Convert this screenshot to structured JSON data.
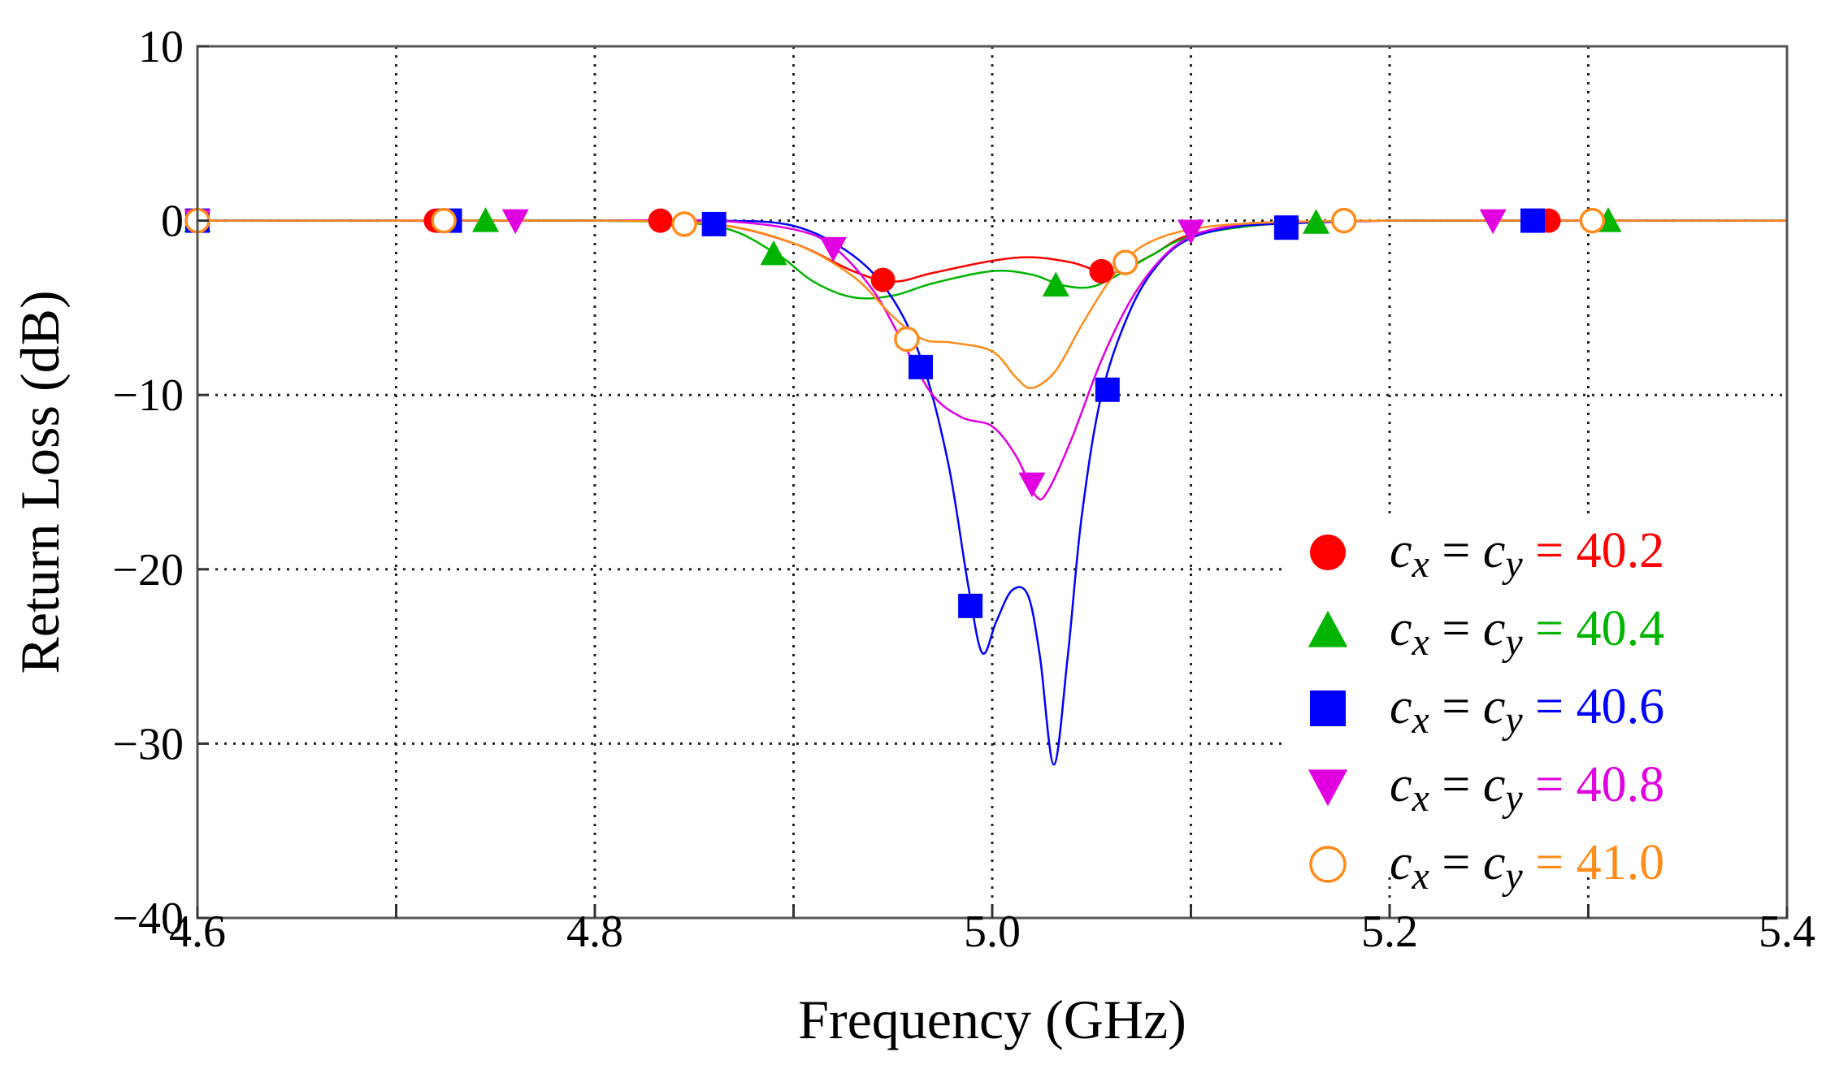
{
  "chart_data": {
    "type": "line",
    "title": "",
    "xlabel": "Frequency (GHz)",
    "ylabel": "Return Loss (dB)",
    "xlim": [
      4.6,
      5.4
    ],
    "ylim": [
      -40,
      10
    ],
    "xticks": [
      4.6,
      4.7,
      4.8,
      4.9,
      5.0,
      5.1,
      5.2,
      5.3,
      5.4
    ],
    "xtick_labels": [
      "4.6",
      "",
      "4.8",
      "",
      "5.0",
      "",
      "5.2",
      "",
      "5.4"
    ],
    "yticks": [
      10,
      0,
      -10,
      -20,
      -30,
      -40
    ],
    "ytick_labels": [
      "10",
      "0",
      "−10",
      "−20",
      "−30",
      "−40"
    ],
    "grid": true,
    "legend_position": "bottom-right",
    "legend_prefix": {
      "cx": "c",
      "x_sub": "x",
      "eq": "=",
      "cy": "c",
      "y_sub": "y"
    },
    "series": [
      {
        "name": "40.2",
        "label_value": "40.2",
        "color": "#ff0000",
        "marker": "circle-filled",
        "curve": [
          [
            4.6,
            0
          ],
          [
            4.7,
            0
          ],
          [
            4.8,
            0
          ],
          [
            4.86,
            -0.2
          ],
          [
            4.9,
            -1.3
          ],
          [
            4.93,
            -2.9
          ],
          [
            4.95,
            -3.5
          ],
          [
            4.97,
            -3.0
          ],
          [
            5.0,
            -2.3
          ],
          [
            5.02,
            -2.1
          ],
          [
            5.04,
            -2.4
          ],
          [
            5.06,
            -3.0
          ],
          [
            5.08,
            -2.0
          ],
          [
            5.1,
            -0.8
          ],
          [
            5.14,
            -0.2
          ],
          [
            5.2,
            0
          ],
          [
            5.3,
            0
          ],
          [
            5.4,
            0
          ]
        ],
        "markers": [
          [
            4.6,
            0
          ],
          [
            4.72,
            0
          ],
          [
            4.833,
            0
          ],
          [
            4.945,
            -3.4
          ],
          [
            5.055,
            -2.9
          ],
          [
            5.28,
            0
          ]
        ]
      },
      {
        "name": "40.4",
        "label_value": "40.4",
        "color": "#00b400",
        "marker": "triangle-up",
        "curve": [
          [
            4.6,
            0
          ],
          [
            4.7,
            0
          ],
          [
            4.8,
            0
          ],
          [
            4.86,
            -0.3
          ],
          [
            4.89,
            -1.8
          ],
          [
            4.91,
            -3.5
          ],
          [
            4.93,
            -4.4
          ],
          [
            4.95,
            -4.3
          ],
          [
            4.97,
            -3.6
          ],
          [
            5.0,
            -2.9
          ],
          [
            5.02,
            -3.1
          ],
          [
            5.035,
            -3.7
          ],
          [
            5.05,
            -3.8
          ],
          [
            5.065,
            -3.0
          ],
          [
            5.08,
            -2.0
          ],
          [
            5.1,
            -0.9
          ],
          [
            5.14,
            -0.2
          ],
          [
            5.2,
            0
          ],
          [
            5.3,
            0
          ],
          [
            5.4,
            0
          ]
        ],
        "markers": [
          [
            4.6,
            0
          ],
          [
            4.745,
            0
          ],
          [
            4.89,
            -1.9
          ],
          [
            5.032,
            -3.7
          ],
          [
            5.163,
            -0.1
          ],
          [
            5.31,
            0
          ]
        ]
      },
      {
        "name": "40.6",
        "label_value": "40.6",
        "color": "#0000ff",
        "marker": "square",
        "curve": [
          [
            4.6,
            0
          ],
          [
            4.7,
            0
          ],
          [
            4.8,
            0
          ],
          [
            4.86,
            0
          ],
          [
            4.9,
            -0.3
          ],
          [
            4.93,
            -2.0
          ],
          [
            4.95,
            -4.5
          ],
          [
            4.965,
            -8.2
          ],
          [
            4.978,
            -14.0
          ],
          [
            4.988,
            -21.0
          ],
          [
            4.995,
            -24.8
          ],
          [
            5.002,
            -23.0
          ],
          [
            5.01,
            -21.2
          ],
          [
            5.018,
            -21.5
          ],
          [
            5.024,
            -25.0
          ],
          [
            5.031,
            -31.2
          ],
          [
            5.038,
            -25.0
          ],
          [
            5.045,
            -17.0
          ],
          [
            5.055,
            -10.0
          ],
          [
            5.07,
            -5.0
          ],
          [
            5.085,
            -2.3
          ],
          [
            5.1,
            -1.0
          ],
          [
            5.12,
            -0.4
          ],
          [
            5.14,
            -0.2
          ],
          [
            5.2,
            0
          ],
          [
            5.3,
            0
          ],
          [
            5.4,
            0
          ]
        ],
        "markers": [
          [
            4.6,
            0
          ],
          [
            4.727,
            0
          ],
          [
            4.86,
            -0.2
          ],
          [
            4.964,
            -8.4
          ],
          [
            4.989,
            -22.1
          ],
          [
            5.058,
            -9.7
          ],
          [
            5.148,
            -0.4
          ],
          [
            5.272,
            0
          ]
        ]
      },
      {
        "name": "40.8",
        "label_value": "40.8",
        "color": "#e000e0",
        "marker": "triangle-down",
        "curve": [
          [
            4.6,
            0
          ],
          [
            4.7,
            0
          ],
          [
            4.8,
            0
          ],
          [
            4.86,
            0
          ],
          [
            4.9,
            -0.5
          ],
          [
            4.92,
            -1.5
          ],
          [
            4.94,
            -4.0
          ],
          [
            4.955,
            -7.0
          ],
          [
            4.97,
            -10.0
          ],
          [
            4.985,
            -11.3
          ],
          [
            5.0,
            -11.8
          ],
          [
            5.012,
            -13.5
          ],
          [
            5.022,
            -15.8
          ],
          [
            5.028,
            -15.5
          ],
          [
            5.04,
            -12.5
          ],
          [
            5.055,
            -8.0
          ],
          [
            5.07,
            -4.5
          ],
          [
            5.085,
            -2.2
          ],
          [
            5.1,
            -0.9
          ],
          [
            5.12,
            -0.3
          ],
          [
            5.14,
            -0.1
          ],
          [
            5.2,
            0
          ],
          [
            5.3,
            0
          ],
          [
            5.4,
            0
          ]
        ],
        "markers": [
          [
            4.6,
            0
          ],
          [
            4.76,
            0
          ],
          [
            4.92,
            -1.6
          ],
          [
            5.02,
            -15.1
          ],
          [
            5.1,
            -0.6
          ],
          [
            5.252,
            0
          ]
        ]
      },
      {
        "name": "41.0",
        "label_value": "41.0",
        "color": "#ff8c1a",
        "marker": "circle-open",
        "curve": [
          [
            4.6,
            0
          ],
          [
            4.7,
            0
          ],
          [
            4.8,
            0
          ],
          [
            4.86,
            -0.2
          ],
          [
            4.9,
            -1.3
          ],
          [
            4.93,
            -3.2
          ],
          [
            4.95,
            -5.5
          ],
          [
            4.965,
            -6.8
          ],
          [
            4.98,
            -7.0
          ],
          [
            5.0,
            -7.5
          ],
          [
            5.012,
            -9.0
          ],
          [
            5.02,
            -9.6
          ],
          [
            5.032,
            -8.6
          ],
          [
            5.045,
            -6.0
          ],
          [
            5.06,
            -3.3
          ],
          [
            5.075,
            -1.5
          ],
          [
            5.1,
            -0.5
          ],
          [
            5.14,
            -0.1
          ],
          [
            5.2,
            0
          ],
          [
            5.3,
            0
          ],
          [
            5.4,
            0
          ]
        ],
        "markers": [
          [
            4.6,
            0
          ],
          [
            4.724,
            0
          ],
          [
            4.845,
            -0.2
          ],
          [
            4.957,
            -6.8
          ],
          [
            5.067,
            -2.4
          ],
          [
            5.177,
            0
          ],
          [
            5.302,
            0
          ]
        ]
      }
    ]
  }
}
